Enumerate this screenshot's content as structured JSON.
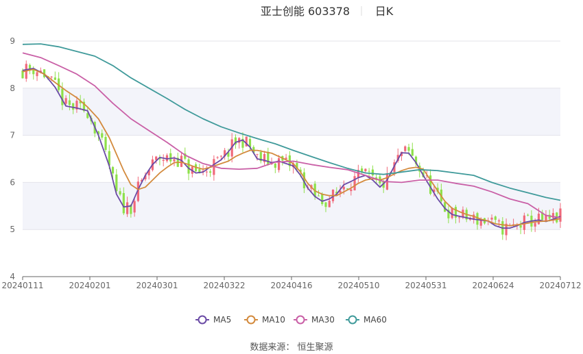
{
  "chart_data": {
    "type": "candlestick",
    "title": "亚士创能 603378",
    "period_label": "日K",
    "ylim": [
      4,
      9
    ],
    "yticks": [
      "4",
      "5",
      "6",
      "7",
      "8",
      "9"
    ],
    "xtick_labels": [
      "20240111",
      "20240201",
      "20240301",
      "20240322",
      "20240416",
      "20240510",
      "20240531",
      "20240624",
      "20240712"
    ],
    "up_color": "#f0697a",
    "down_color": "#8ee04a",
    "grid": true,
    "legend_position": "bottom",
    "series": [
      {
        "name": "MA5",
        "color": "#6a4aa5",
        "points": [
          [
            0,
            8.38
          ],
          [
            3,
            8.42
          ],
          [
            6,
            8.3
          ],
          [
            9,
            8.02
          ],
          [
            12,
            7.62
          ],
          [
            15,
            7.58
          ],
          [
            18,
            7.52
          ],
          [
            21,
            7.0
          ],
          [
            24,
            6.35
          ],
          [
            26,
            5.75
          ],
          [
            28,
            5.48
          ],
          [
            30,
            5.5
          ],
          [
            32,
            5.85
          ],
          [
            34,
            6.15
          ],
          [
            36,
            6.38
          ],
          [
            38,
            6.53
          ],
          [
            40,
            6.5
          ],
          [
            42,
            6.52
          ],
          [
            44,
            6.47
          ],
          [
            46,
            6.3
          ],
          [
            48,
            6.2
          ],
          [
            50,
            6.22
          ],
          [
            52,
            6.33
          ],
          [
            55,
            6.48
          ],
          [
            57,
            6.65
          ],
          [
            59,
            6.85
          ],
          [
            61,
            6.9
          ],
          [
            63,
            6.75
          ],
          [
            65,
            6.5
          ],
          [
            67,
            6.47
          ],
          [
            69,
            6.42
          ],
          [
            71,
            6.45
          ],
          [
            73,
            6.4
          ],
          [
            75,
            6.35
          ],
          [
            77,
            6.15
          ],
          [
            79,
            5.88
          ],
          [
            81,
            5.7
          ],
          [
            83,
            5.6
          ],
          [
            85,
            5.65
          ],
          [
            87,
            5.75
          ],
          [
            89,
            5.95
          ],
          [
            91,
            6.02
          ],
          [
            93,
            6.1
          ],
          [
            95,
            6.15
          ],
          [
            97,
            6.05
          ],
          [
            99,
            5.9
          ],
          [
            101,
            6.05
          ],
          [
            103,
            6.35
          ],
          [
            105,
            6.63
          ],
          [
            107,
            6.62
          ],
          [
            109,
            6.42
          ],
          [
            111,
            6.15
          ],
          [
            113,
            5.9
          ],
          [
            115,
            5.65
          ],
          [
            117,
            5.45
          ],
          [
            119,
            5.32
          ],
          [
            121,
            5.28
          ],
          [
            123,
            5.25
          ],
          [
            125,
            5.22
          ],
          [
            127,
            5.2
          ],
          [
            129,
            5.18
          ],
          [
            131,
            5.08
          ],
          [
            133,
            5.03
          ],
          [
            135,
            5.03
          ],
          [
            137,
            5.08
          ],
          [
            139,
            5.15
          ],
          [
            141,
            5.18
          ],
          [
            143,
            5.2
          ],
          [
            145,
            5.17
          ],
          [
            147,
            5.22
          ],
          [
            149,
            5.28
          ]
        ]
      },
      {
        "name": "MA10",
        "color": "#d38a3d",
        "points": [
          [
            0,
            8.35
          ],
          [
            3,
            8.4
          ],
          [
            6,
            8.3
          ],
          [
            9,
            8.12
          ],
          [
            12,
            7.95
          ],
          [
            15,
            7.8
          ],
          [
            18,
            7.6
          ],
          [
            21,
            7.35
          ],
          [
            24,
            6.95
          ],
          [
            26,
            6.6
          ],
          [
            28,
            6.25
          ],
          [
            30,
            5.95
          ],
          [
            32,
            5.85
          ],
          [
            34,
            5.9
          ],
          [
            36,
            6.05
          ],
          [
            38,
            6.2
          ],
          [
            40,
            6.32
          ],
          [
            42,
            6.42
          ],
          [
            44,
            6.43
          ],
          [
            46,
            6.38
          ],
          [
            48,
            6.32
          ],
          [
            50,
            6.28
          ],
          [
            52,
            6.32
          ],
          [
            55,
            6.4
          ],
          [
            57,
            6.45
          ],
          [
            59,
            6.55
          ],
          [
            61,
            6.62
          ],
          [
            63,
            6.68
          ],
          [
            65,
            6.68
          ],
          [
            67,
            6.65
          ],
          [
            69,
            6.62
          ],
          [
            71,
            6.55
          ],
          [
            73,
            6.48
          ],
          [
            75,
            6.4
          ],
          [
            77,
            6.22
          ],
          [
            79,
            5.98
          ],
          [
            81,
            5.82
          ],
          [
            83,
            5.75
          ],
          [
            85,
            5.72
          ],
          [
            87,
            5.72
          ],
          [
            89,
            5.8
          ],
          [
            91,
            5.88
          ],
          [
            93,
            5.98
          ],
          [
            95,
            6.05
          ],
          [
            97,
            6.08
          ],
          [
            99,
            6.05
          ],
          [
            101,
            6.1
          ],
          [
            103,
            6.18
          ],
          [
            105,
            6.25
          ],
          [
            107,
            6.3
          ],
          [
            109,
            6.32
          ],
          [
            111,
            6.28
          ],
          [
            113,
            6.05
          ],
          [
            115,
            5.82
          ],
          [
            117,
            5.6
          ],
          [
            119,
            5.45
          ],
          [
            121,
            5.38
          ],
          [
            123,
            5.32
          ],
          [
            125,
            5.28
          ],
          [
            127,
            5.22
          ],
          [
            129,
            5.18
          ],
          [
            131,
            5.12
          ],
          [
            133,
            5.1
          ],
          [
            135,
            5.08
          ],
          [
            137,
            5.1
          ],
          [
            139,
            5.12
          ],
          [
            141,
            5.15
          ],
          [
            143,
            5.17
          ],
          [
            145,
            5.18
          ],
          [
            147,
            5.2
          ],
          [
            149,
            5.23
          ]
        ]
      },
      {
        "name": "MA30",
        "color": "#c95fa6",
        "points": [
          [
            0,
            8.75
          ],
          [
            5,
            8.65
          ],
          [
            10,
            8.48
          ],
          [
            15,
            8.3
          ],
          [
            20,
            8.05
          ],
          [
            25,
            7.68
          ],
          [
            30,
            7.35
          ],
          [
            35,
            7.1
          ],
          [
            40,
            6.85
          ],
          [
            45,
            6.58
          ],
          [
            50,
            6.4
          ],
          [
            55,
            6.3
          ],
          [
            60,
            6.28
          ],
          [
            65,
            6.3
          ],
          [
            70,
            6.43
          ],
          [
            75,
            6.45
          ],
          [
            80,
            6.38
          ],
          [
            85,
            6.32
          ],
          [
            90,
            6.27
          ],
          [
            95,
            6.15
          ],
          [
            100,
            6.02
          ],
          [
            105,
            6.0
          ],
          [
            110,
            6.05
          ],
          [
            115,
            6.05
          ],
          [
            120,
            5.98
          ],
          [
            125,
            5.92
          ],
          [
            130,
            5.8
          ],
          [
            135,
            5.65
          ],
          [
            140,
            5.55
          ],
          [
            145,
            5.3
          ],
          [
            149,
            5.25
          ]
        ]
      },
      {
        "name": "MA60",
        "color": "#3f9a9a",
        "points": [
          [
            0,
            8.93
          ],
          [
            5,
            8.94
          ],
          [
            10,
            8.88
          ],
          [
            15,
            8.78
          ],
          [
            20,
            8.68
          ],
          [
            25,
            8.48
          ],
          [
            30,
            8.22
          ],
          [
            35,
            8.0
          ],
          [
            40,
            7.78
          ],
          [
            45,
            7.55
          ],
          [
            50,
            7.35
          ],
          [
            55,
            7.18
          ],
          [
            60,
            7.05
          ],
          [
            65,
            6.93
          ],
          [
            70,
            6.82
          ],
          [
            75,
            6.68
          ],
          [
            80,
            6.55
          ],
          [
            85,
            6.42
          ],
          [
            90,
            6.3
          ],
          [
            95,
            6.2
          ],
          [
            100,
            6.17
          ],
          [
            105,
            6.22
          ],
          [
            110,
            6.27
          ],
          [
            115,
            6.25
          ],
          [
            120,
            6.2
          ],
          [
            125,
            6.15
          ],
          [
            130,
            6.0
          ],
          [
            135,
            5.88
          ],
          [
            140,
            5.78
          ],
          [
            145,
            5.68
          ],
          [
            149,
            5.62
          ]
        ]
      }
    ]
  },
  "legend": {
    "items": [
      {
        "name": "MA5",
        "color": "#6a4aa5"
      },
      {
        "name": "MA10",
        "color": "#d38a3d"
      },
      {
        "name": "MA30",
        "color": "#c95fa6"
      },
      {
        "name": "MA60",
        "color": "#3f9a9a"
      }
    ]
  },
  "source": {
    "text": "数据来源：  恒生聚源"
  }
}
